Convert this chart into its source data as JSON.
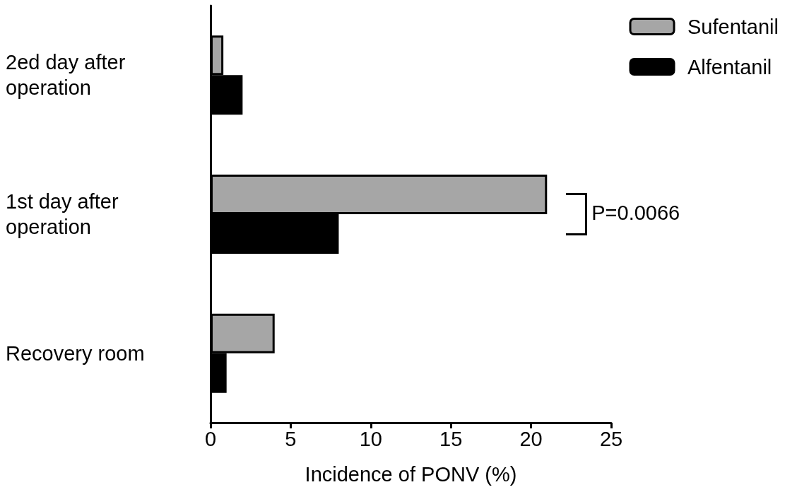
{
  "chart_data": {
    "type": "bar",
    "orientation": "horizontal",
    "xlabel": "Incidence of PONV (%)",
    "categories": [
      "2ed day after operation",
      "1st day after operation",
      "Recovery room"
    ],
    "series": [
      {
        "name": "Sufentanil",
        "color": "#a6a6a6",
        "values": [
          0.8,
          21,
          4
        ]
      },
      {
        "name": "Alfentanil",
        "color": "#000000",
        "values": [
          2,
          8,
          1
        ]
      }
    ],
    "xlim": [
      0,
      25
    ],
    "xticks": [
      0,
      5,
      10,
      15,
      20,
      25
    ],
    "grid": false,
    "legend": "top right",
    "annotations": [
      "P=0.0066"
    ]
  }
}
